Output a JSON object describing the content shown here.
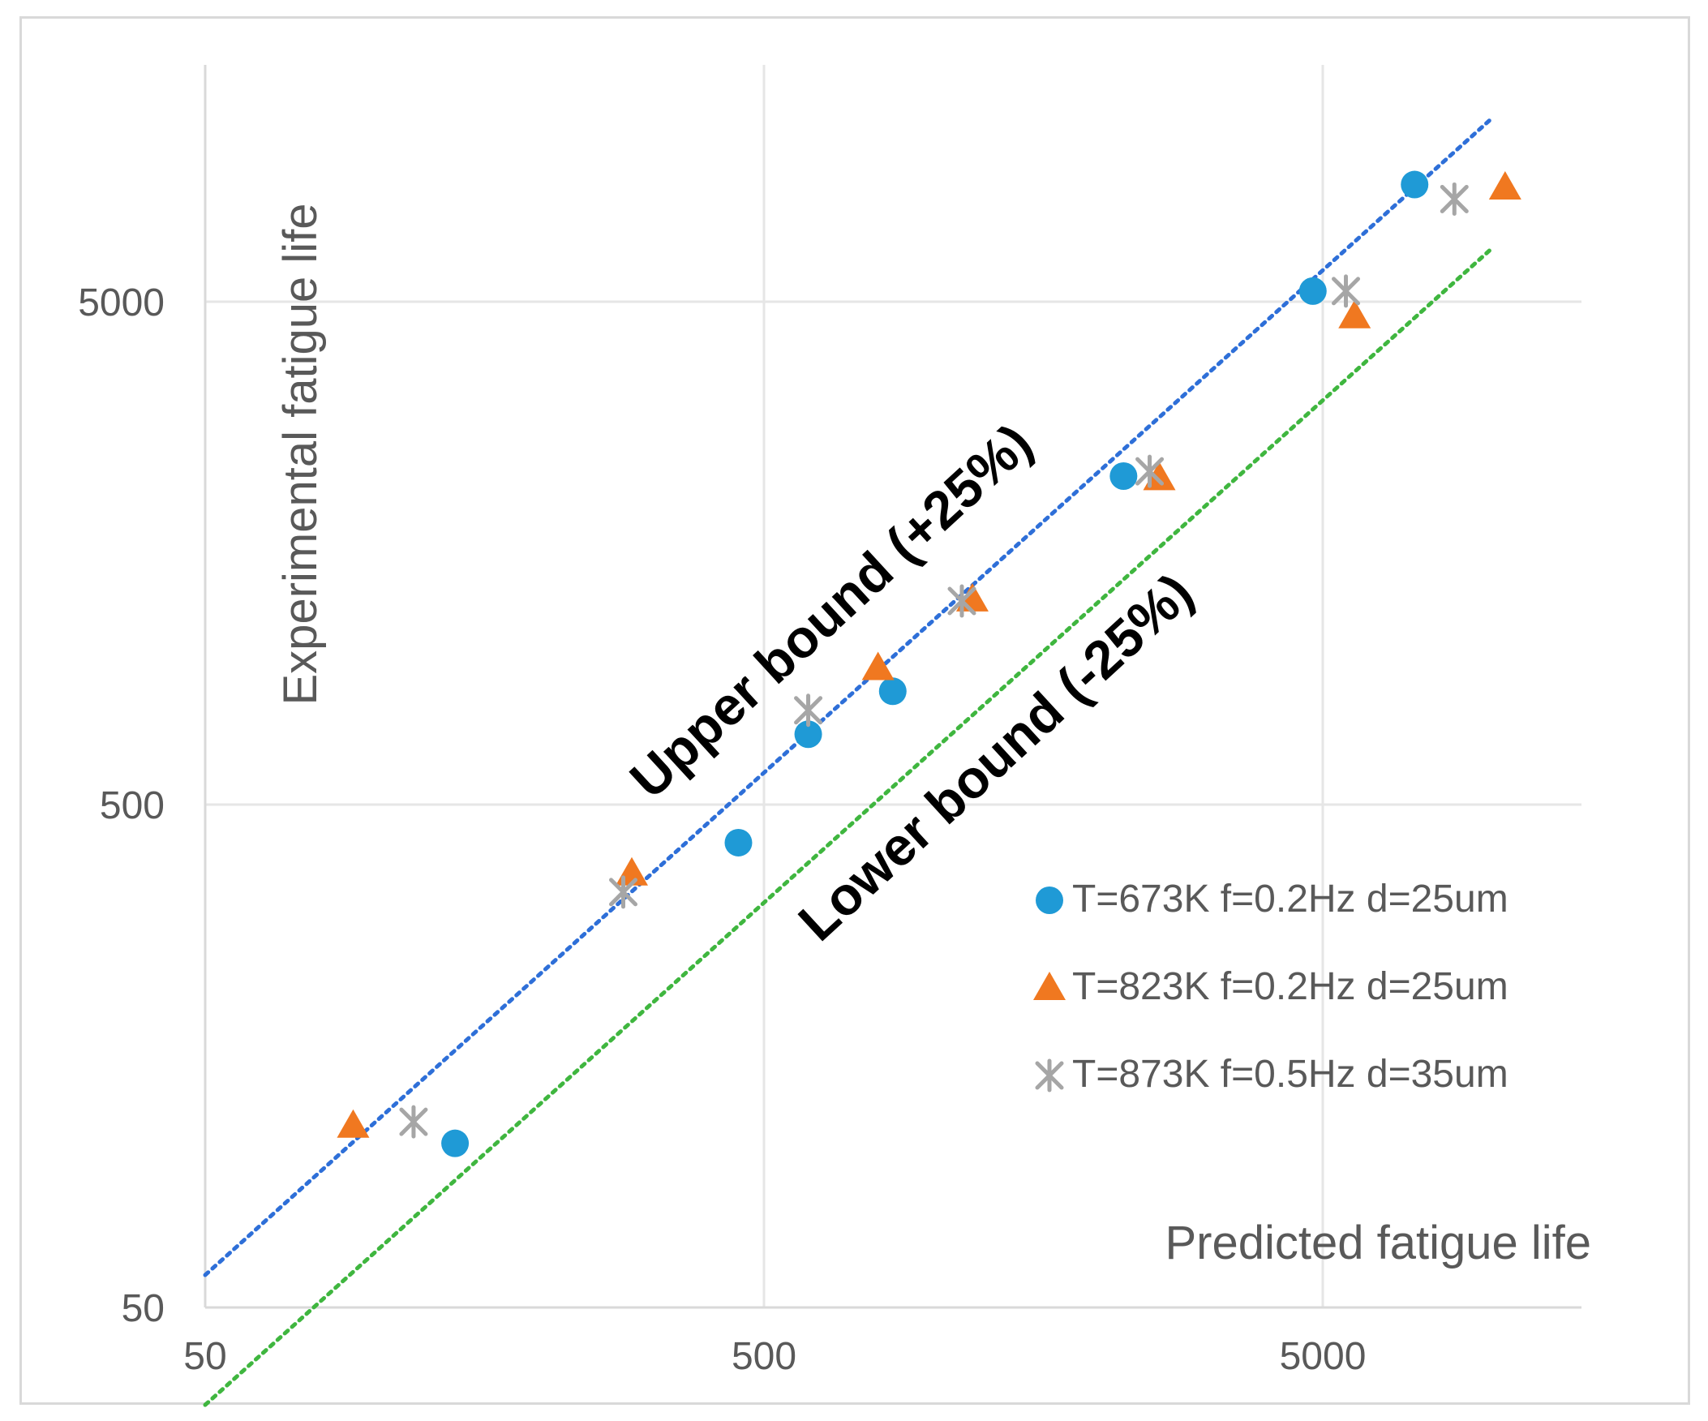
{
  "chart_data": {
    "type": "scatter",
    "title": "",
    "xlabel": "Predicted fatigue life",
    "ylabel": "Experimental fatigue life",
    "x_scale": "log",
    "y_scale": "log",
    "xlim": [
      50,
      10000
    ],
    "ylim": [
      50,
      14000
    ],
    "x_ticks": [
      50,
      500,
      5000
    ],
    "y_ticks": [
      50,
      500,
      5000
    ],
    "x_tick_labels": [
      "50",
      "500",
      "5000"
    ],
    "y_tick_labels": [
      "50",
      "500",
      "5000"
    ],
    "grid": true,
    "legend_position": "lower-right",
    "series": [
      {
        "name": "T=673K f=0.2Hz d=25um",
        "marker": "circle",
        "color": "#1f9ad6",
        "x": [
          140,
          450,
          600,
          850,
          2200,
          4800,
          7300
        ],
        "y": [
          106,
          420,
          690,
          840,
          2250,
          5250,
          8550
        ]
      },
      {
        "name": "T=823K f=0.2Hz d=25um",
        "marker": "triangle",
        "color": "#f07820",
        "x": [
          92,
          290,
          800,
          1180,
          2550,
          5700,
          10600
        ],
        "y": [
          115,
          365,
          935,
          1280,
          2230,
          4680,
          8440
        ]
      },
      {
        "name": "T=873K f=0.5Hz d=35um",
        "marker": "star",
        "color": "#a6a6a6",
        "x": [
          118,
          280,
          600,
          1130,
          2450,
          5500,
          8600
        ],
        "y": [
          117,
          335,
          770,
          1270,
          2300,
          5250,
          8000
        ]
      }
    ],
    "reference_lines": [
      {
        "name": "Upper bound (+25%)",
        "style": "dotted",
        "color": "#2e6fd8",
        "from": [
          50,
          58
        ],
        "to": [
          10000,
          11540
        ]
      },
      {
        "name": "Lower bound (-25%)",
        "style": "dotted",
        "color": "#3fb63f",
        "from": [
          50,
          32
        ],
        "to": [
          10000,
          6360
        ]
      }
    ]
  }
}
